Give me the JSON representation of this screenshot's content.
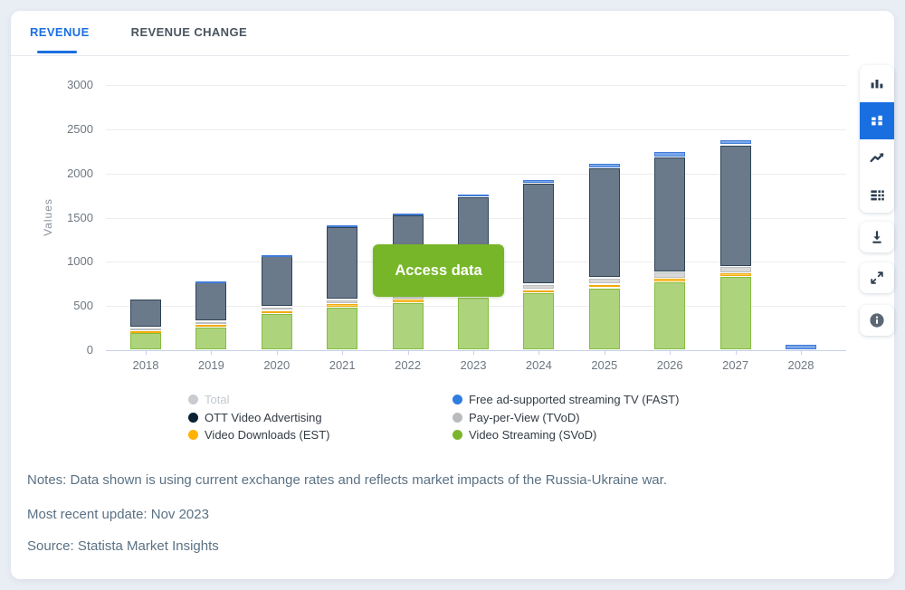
{
  "tabs": [
    {
      "label": "REVENUE",
      "active": true
    },
    {
      "label": "REVENUE CHANGE",
      "active": false
    }
  ],
  "overlay": {
    "button_label": "Access data"
  },
  "chart_data": {
    "type": "bar",
    "stacked": true,
    "ylabel": "Values",
    "xlabel": "",
    "ylim": [
      0,
      3000
    ],
    "yticks": [
      0,
      500,
      1000,
      1500,
      2000,
      2500,
      3000
    ],
    "grid": true,
    "legend_position": "bottom",
    "categories": [
      "2018",
      "2019",
      "2020",
      "2021",
      "2022",
      "2023",
      "2024",
      "2025",
      "2026",
      "2027",
      "2028"
    ],
    "series": [
      {
        "name": "Video Streaming (SVoD)",
        "fill": "#aed37d",
        "stroke": "#85bd3d",
        "values": [
          190,
          255,
          410,
          480,
          530,
          590,
          640,
          700,
          765,
          830,
          0
        ]
      },
      {
        "name": "Video Downloads (EST)",
        "fill": "#fcd368",
        "stroke": "#f2a90a",
        "values": [
          30,
          30,
          35,
          40,
          40,
          40,
          40,
          40,
          40,
          40,
          0
        ]
      },
      {
        "name": "Pay-per-View (TVoD)",
        "fill": "#d9d9d9",
        "stroke": "#bcbec0",
        "values": [
          30,
          35,
          40,
          45,
          50,
          55,
          60,
          70,
          75,
          70,
          0
        ]
      },
      {
        "name": "OTT Video Advertising",
        "fill": "#6b7a8b",
        "stroke": "#2f4456",
        "values": [
          325,
          455,
          585,
          830,
          905,
          1045,
          1140,
          1245,
          1300,
          1375,
          0
        ]
      },
      {
        "name": "Free ad-supported streaming TV (FAST)",
        "fill": "#7aa7e9",
        "stroke": "#3e7bd8",
        "values": [
          0,
          5,
          10,
          15,
          20,
          30,
          45,
          55,
          60,
          65,
          60
        ]
      }
    ],
    "totals": [
      575,
      780,
      1080,
      1410,
      1545,
      1760,
      1925,
      2110,
      2240,
      2380,
      60
    ]
  },
  "legend": {
    "columns": [
      [
        {
          "label": "Total",
          "color": "#c8ccd0",
          "disabled": true
        },
        {
          "label": "OTT Video Advertising",
          "color": "#0c2133",
          "disabled": false
        },
        {
          "label": "Video Downloads (EST)",
          "color": "#ffb300",
          "disabled": false
        }
      ],
      [
        {
          "label": "Free ad-supported streaming TV (FAST)",
          "color": "#2f7de1",
          "disabled": false
        },
        {
          "label": "Pay-per-View (TVoD)",
          "color": "#b9bcbf",
          "disabled": false
        },
        {
          "label": "Video Streaming (SVoD)",
          "color": "#7ab62c",
          "disabled": false
        }
      ]
    ]
  },
  "notes": {
    "line1": "Notes: Data shown is using current exchange rates and reflects market impacts of the Russia-Ukraine war.",
    "line2": "Most recent update: Nov 2023",
    "line3": "Source: Statista Market Insights"
  },
  "toolbar": {
    "group": [
      {
        "name": "bar-chart",
        "active": false
      },
      {
        "name": "stacked-bar-chart",
        "active": true
      },
      {
        "name": "line-chart",
        "active": false
      },
      {
        "name": "data-table",
        "active": false
      }
    ],
    "buttons": [
      {
        "name": "download"
      },
      {
        "name": "fullscreen"
      },
      {
        "name": "info"
      }
    ]
  },
  "theme": {
    "accent_blue": "#1a6fe0",
    "access_green": "#77b629",
    "page_background": "#e9edf4",
    "note_text": "#5a7184"
  }
}
